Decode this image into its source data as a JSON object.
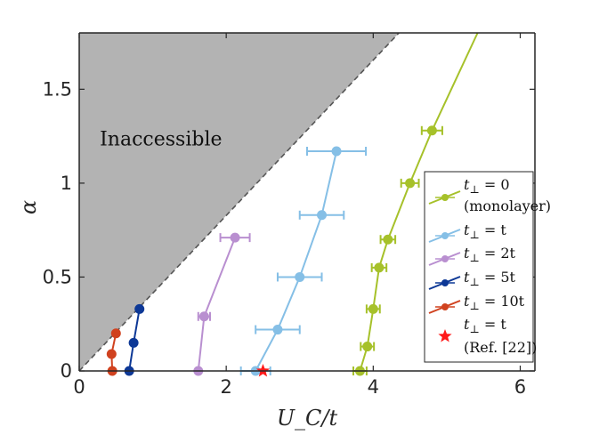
{
  "chart_data": {
    "type": "scatter",
    "xlabel": "U_C/t",
    "ylabel": "α",
    "xlim": [
      0,
      6.2
    ],
    "ylim": [
      0,
      1.8
    ],
    "x_ticks": [
      "0",
      "2",
      "4",
      "6"
    ],
    "y_ticks": [
      "0",
      "0.5",
      "1",
      "1.5"
    ],
    "x_tick_values": [
      0,
      2,
      4,
      6
    ],
    "y_tick_values": [
      0,
      0.5,
      1,
      1.5
    ],
    "annotation": "Inaccessible",
    "shaded_region": {
      "label": "Inaccessible",
      "boundary": [
        [
          0,
          0
        ],
        [
          4.35,
          1.8
        ]
      ],
      "color": "#b3b3b3"
    },
    "legend_position": "right",
    "series": [
      {
        "name": "t⊥ = 0",
        "name2": "(monolayer)",
        "color": "#a6c12a",
        "points": [
          {
            "x": 3.82,
            "y": 0.0,
            "xerr": 0.09
          },
          {
            "x": 3.92,
            "y": 0.13,
            "xerr": 0.09
          },
          {
            "x": 4.0,
            "y": 0.33,
            "xerr": 0.09
          },
          {
            "x": 4.08,
            "y": 0.55,
            "xerr": 0.1
          },
          {
            "x": 4.2,
            "y": 0.7,
            "xerr": 0.1
          },
          {
            "x": 4.5,
            "y": 1.0,
            "xerr": 0.12
          },
          {
            "x": 4.8,
            "y": 1.28,
            "xerr": 0.14
          }
        ],
        "line_extension": [
          [
            4.8,
            1.28
          ],
          [
            5.42,
            1.8
          ]
        ]
      },
      {
        "name": "t⊥ = t",
        "color": "#85bfe6",
        "points": [
          {
            "x": 2.4,
            "y": 0.0,
            "xerr": 0.2
          },
          {
            "x": 2.7,
            "y": 0.22,
            "xerr": 0.3
          },
          {
            "x": 3.0,
            "y": 0.5,
            "xerr": 0.3
          },
          {
            "x": 3.3,
            "y": 0.83,
            "xerr": 0.3
          },
          {
            "x": 3.5,
            "y": 1.17,
            "xerr": 0.4
          }
        ]
      },
      {
        "name": "t⊥ = 2t",
        "color": "#b98fd0",
        "points": [
          {
            "x": 1.62,
            "y": 0.0,
            "xerr": 0.0
          },
          {
            "x": 1.7,
            "y": 0.29,
            "xerr": 0.08
          },
          {
            "x": 2.12,
            "y": 0.71,
            "xerr": 0.2
          }
        ]
      },
      {
        "name": "t⊥ = 5t",
        "color": "#0d3896",
        "points": [
          {
            "x": 0.68,
            "y": 0.0,
            "xerr": 0.0
          },
          {
            "x": 0.74,
            "y": 0.15,
            "xerr": 0.0
          },
          {
            "x": 0.82,
            "y": 0.33,
            "xerr": 0.0
          }
        ]
      },
      {
        "name": "t⊥ = 10t",
        "color": "#d0421f",
        "points": [
          {
            "x": 0.45,
            "y": 0.0,
            "xerr": 0.0
          },
          {
            "x": 0.44,
            "y": 0.09,
            "xerr": 0.0
          },
          {
            "x": 0.5,
            "y": 0.2,
            "xerr": 0.0
          }
        ]
      }
    ],
    "reference_point": {
      "name": "t⊥ = t",
      "name2": "(Ref. [22])",
      "x": 2.5,
      "y": 0.0,
      "color": "#ff1a1a"
    }
  }
}
